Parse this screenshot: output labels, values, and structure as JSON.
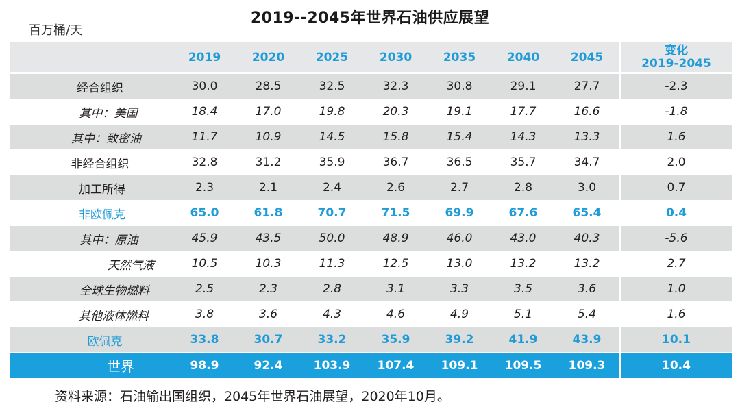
{
  "title": "2019--2045年世界石油供应展望",
  "unit": "百万桶/天",
  "columns": [
    "2019",
    "2020",
    "2025",
    "2030",
    "2035",
    "2040",
    "2045"
  ],
  "change_header": {
    "line1": "变化",
    "line2": "2019-2045"
  },
  "rows": [
    {
      "label": "经合组织",
      "values": [
        "30.0",
        "28.5",
        "32.5",
        "32.3",
        "30.8",
        "29.1",
        "27.7"
      ],
      "change": "-2.3"
    },
    {
      "label": "其中：美国",
      "values": [
        "18.4",
        "17.0",
        "19.8",
        "20.3",
        "19.1",
        "17.7",
        "16.6"
      ],
      "change": "-1.8"
    },
    {
      "label": "其中：致密油",
      "values": [
        "11.7",
        "10.9",
        "14.5",
        "15.8",
        "15.4",
        "14.3",
        "13.3"
      ],
      "change": "1.6"
    },
    {
      "label": "非经合组织",
      "values": [
        "32.8",
        "31.2",
        "35.9",
        "36.7",
        "36.5",
        "35.7",
        "34.7"
      ],
      "change": "2.0"
    },
    {
      "label": "加工所得",
      "values": [
        "2.3",
        "2.1",
        "2.4",
        "2.6",
        "2.7",
        "2.8",
        "3.0"
      ],
      "change": "0.7"
    },
    {
      "label": "非欧佩克",
      "values": [
        "65.0",
        "61.8",
        "70.7",
        "71.5",
        "69.9",
        "67.6",
        "65.4"
      ],
      "change": "0.4"
    },
    {
      "label": "其中：原油",
      "values": [
        "45.9",
        "43.5",
        "50.0",
        "48.9",
        "46.0",
        "43.0",
        "40.3"
      ],
      "change": "-5.6"
    },
    {
      "label": "天然气液",
      "values": [
        "10.5",
        "10.3",
        "11.3",
        "12.5",
        "13.0",
        "13.2",
        "13.2"
      ],
      "change": "2.7"
    },
    {
      "label": "全球生物燃料",
      "values": [
        "2.5",
        "2.3",
        "2.8",
        "3.1",
        "3.3",
        "3.5",
        "3.6"
      ],
      "change": "1.0"
    },
    {
      "label": "其他液体燃料",
      "values": [
        "3.8",
        "3.6",
        "4.3",
        "4.6",
        "4.9",
        "5.1",
        "5.4"
      ],
      "change": "1.6"
    },
    {
      "label": "欧佩克",
      "values": [
        "33.8",
        "30.7",
        "33.2",
        "35.9",
        "39.2",
        "41.9",
        "43.9"
      ],
      "change": "10.1"
    },
    {
      "label": "世界",
      "values": [
        "98.9",
        "92.4",
        "103.9",
        "107.4",
        "109.1",
        "109.5",
        "109.3"
      ],
      "change": "10.4"
    }
  ],
  "source": "资料来源：石油输出国组织，2045年世界石油展望，2020年10月。",
  "colors": {
    "accent_blue": "#1f9bd7",
    "total_row_bg": "#1ba0de",
    "band_grey": "#dcdddd",
    "text": "#231f20"
  }
}
